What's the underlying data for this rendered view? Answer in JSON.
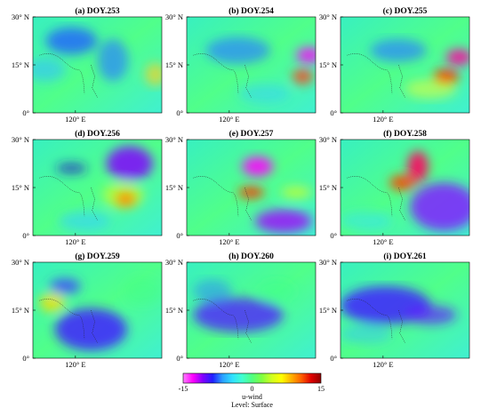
{
  "panels": [
    {
      "title": "(a) DOY.253"
    },
    {
      "title": "(b) DOY.254"
    },
    {
      "title": "(c) DOY.255"
    },
    {
      "title": "(d) DOY.256"
    },
    {
      "title": "(e) DOY.257"
    },
    {
      "title": "(f) DOY.258"
    },
    {
      "title": "(g) DOY.259"
    },
    {
      "title": "(h) DOY.260"
    },
    {
      "title": "(i) DOY.261"
    }
  ],
  "axes": {
    "y_ticks": [
      "30° N",
      "15° N",
      "0°"
    ],
    "x_tick": "120° E"
  },
  "colorbar": {
    "ticks": [
      "-15",
      "0",
      "15"
    ],
    "variable": "u-wind",
    "level": "Level: Surface",
    "stops": [
      "#ff80ff",
      "#ff00ff",
      "#8000ff",
      "#2020ff",
      "#2aa0ff",
      "#30e0ff",
      "#40ffd0",
      "#50ff80",
      "#80ff40",
      "#d0ff20",
      "#ffff00",
      "#ffb000",
      "#ff6000",
      "#e00000",
      "#900000"
    ]
  }
}
